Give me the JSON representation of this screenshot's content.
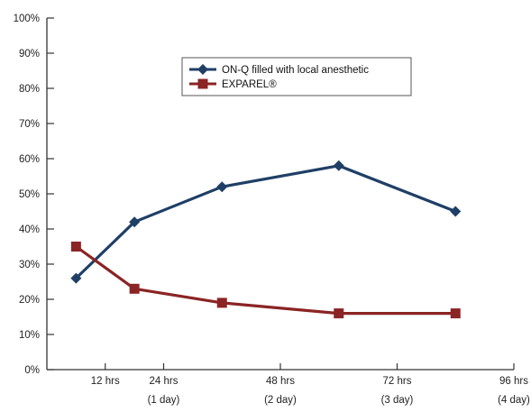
{
  "chart_data": {
    "type": "line",
    "title": "",
    "xlabel": "",
    "ylabel": "",
    "ylim": [
      0,
      100
    ],
    "y_ticks": [
      "0%",
      "10%",
      "20%",
      "30%",
      "40%",
      "50%",
      "60%",
      "70%",
      "80%",
      "90%",
      "100%"
    ],
    "x_ticks": [
      {
        "hours": 12,
        "label": "12 hrs",
        "sub": ""
      },
      {
        "hours": 24,
        "label": "24 hrs",
        "sub": "(1 day)"
      },
      {
        "hours": 48,
        "label": "48 hrs",
        "sub": "(2 day)"
      },
      {
        "hours": 72,
        "label": "72 hrs",
        "sub": "(3 day)"
      },
      {
        "hours": 96,
        "label": "96 hrs",
        "sub": "(4 day)"
      }
    ],
    "legend_position": "top-center",
    "grid": false,
    "series": [
      {
        "name": "ON-Q filled with local anesthetic",
        "color": "#1f3f66",
        "marker": "diamond",
        "points": [
          {
            "hours": 6,
            "value": 26
          },
          {
            "hours": 18,
            "value": 42
          },
          {
            "hours": 36,
            "value": 52
          },
          {
            "hours": 60,
            "value": 58
          },
          {
            "hours": 84,
            "value": 45
          }
        ]
      },
      {
        "name": "EXPAREL®",
        "color": "#8b2424",
        "marker": "square",
        "points": [
          {
            "hours": 6,
            "value": 35
          },
          {
            "hours": 18,
            "value": 23
          },
          {
            "hours": 36,
            "value": 19
          },
          {
            "hours": 60,
            "value": 16
          },
          {
            "hours": 84,
            "value": 16
          }
        ]
      }
    ]
  }
}
